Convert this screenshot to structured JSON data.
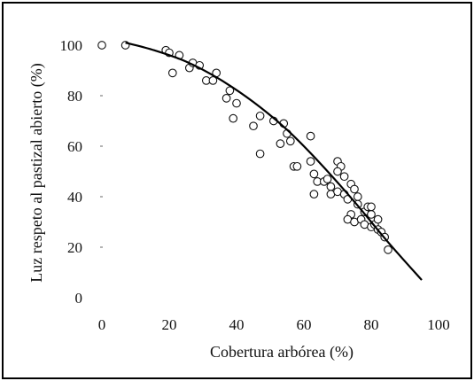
{
  "chart_data": {
    "type": "scatter",
    "xlabel": "Cobertura arbórea (%)",
    "ylabel": "Luz respeto al pastizal abierto (%)",
    "xlim": [
      0,
      100
    ],
    "ylim": [
      0,
      100
    ],
    "x_ticks": [
      "0",
      "20",
      "40",
      "60",
      "80",
      "100"
    ],
    "y_ticks": [
      "0",
      "20",
      "40",
      "60",
      "80",
      "100"
    ],
    "grid": false,
    "legend": "none",
    "series": [
      {
        "kind": "points",
        "marker": "open-circle",
        "points": [
          [
            0,
            100
          ],
          [
            7,
            100
          ],
          [
            19,
            98
          ],
          [
            20,
            97
          ],
          [
            23,
            96
          ],
          [
            21,
            89
          ],
          [
            26,
            91
          ],
          [
            27,
            93
          ],
          [
            29,
            92
          ],
          [
            31,
            86
          ],
          [
            34,
            89
          ],
          [
            33,
            86
          ],
          [
            38,
            82
          ],
          [
            37,
            79
          ],
          [
            40,
            77
          ],
          [
            39,
            71
          ],
          [
            45,
            68
          ],
          [
            47,
            72
          ],
          [
            47,
            57
          ],
          [
            51,
            70
          ],
          [
            54,
            69
          ],
          [
            55,
            65
          ],
          [
            56,
            62
          ],
          [
            53,
            61
          ],
          [
            57,
            52
          ],
          [
            58,
            52
          ],
          [
            62,
            64
          ],
          [
            62,
            54
          ],
          [
            63,
            49
          ],
          [
            64,
            46
          ],
          [
            63,
            41
          ],
          [
            66,
            46
          ],
          [
            67,
            47
          ],
          [
            68,
            44
          ],
          [
            68,
            41
          ],
          [
            70,
            54
          ],
          [
            71,
            52
          ],
          [
            70,
            50
          ],
          [
            72,
            48
          ],
          [
            70,
            42
          ],
          [
            72,
            41
          ],
          [
            73,
            39
          ],
          [
            74,
            45
          ],
          [
            75,
            43
          ],
          [
            76,
            40
          ],
          [
            76,
            37
          ],
          [
            74,
            33
          ],
          [
            73,
            31
          ],
          [
            75,
            30
          ],
          [
            77,
            31
          ],
          [
            78,
            34
          ],
          [
            79,
            36
          ],
          [
            80,
            36
          ],
          [
            80,
            33
          ],
          [
            78,
            29
          ],
          [
            80,
            28
          ],
          [
            81,
            29
          ],
          [
            82,
            31
          ],
          [
            82,
            27
          ],
          [
            83,
            26
          ],
          [
            84,
            24
          ],
          [
            85,
            19
          ]
        ]
      },
      {
        "kind": "fit-curve",
        "points": [
          [
            7,
            101
          ],
          [
            15,
            98.2
          ],
          [
            25,
            93.5
          ],
          [
            35,
            86.5
          ],
          [
            45,
            77.5
          ],
          [
            55,
            66.5
          ],
          [
            65,
            53
          ],
          [
            75,
            38
          ],
          [
            85,
            22
          ],
          [
            95,
            7
          ]
        ]
      }
    ]
  }
}
